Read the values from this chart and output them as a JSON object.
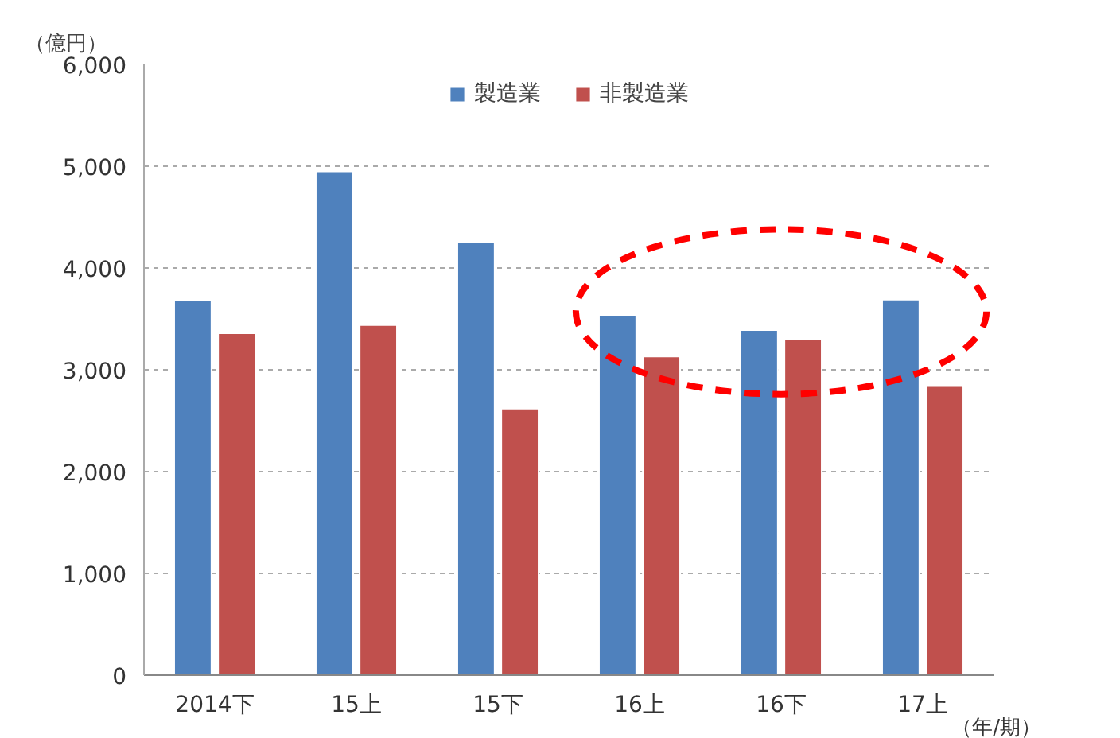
{
  "chart_data": {
    "type": "bar",
    "ylabel": "（億円）",
    "xlabel": "（年/期）",
    "categories": [
      "2014下",
      "15上",
      "15下",
      "16上",
      "16下",
      "17上"
    ],
    "series": [
      {
        "name": "製造業",
        "color": "#4f81bd",
        "values": [
          3680,
          4950,
          4250,
          3540,
          3390,
          3690
        ]
      },
      {
        "name": "非製造業",
        "color": "#c0504d",
        "values": [
          3360,
          3440,
          2620,
          3130,
          3300,
          2840
        ]
      }
    ],
    "ylim": [
      0,
      6000
    ],
    "yticks": [
      {
        "value": 0,
        "label": "0"
      },
      {
        "value": 1000,
        "label": "1,000"
      },
      {
        "value": 2000,
        "label": "2,000"
      },
      {
        "value": 3000,
        "label": "3,000"
      },
      {
        "value": 4000,
        "label": "4,000"
      },
      {
        "value": 5000,
        "label": "5,000"
      },
      {
        "value": 6000,
        "label": "6,000"
      }
    ],
    "grid": "y",
    "legend": "top"
  }
}
